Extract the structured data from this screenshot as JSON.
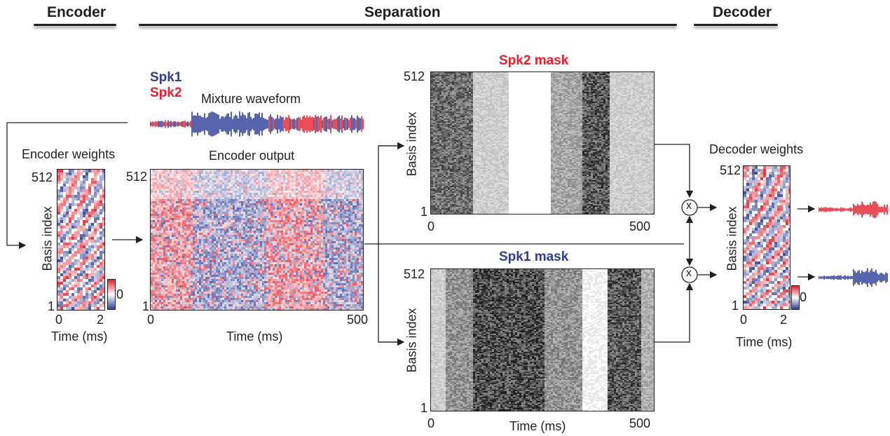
{
  "sections": {
    "encoder": "Encoder",
    "separation": "Separation",
    "decoder": "Decoder"
  },
  "legend": {
    "spk1": "Spk1",
    "spk2": "Spk2"
  },
  "mixture": {
    "title": "Mixture waveform"
  },
  "encoder_weights": {
    "title": "Encoder weights",
    "ylabel": "Basis index",
    "y_top": "512",
    "y_bottom": "1",
    "x_start": "0",
    "x_end": "2",
    "xlabel": "Time (ms)",
    "colorbar_label": "0"
  },
  "encoder_output": {
    "title": "Encoder output",
    "y_top": "512",
    "y_bottom": "1",
    "x_start": "0",
    "x_end": "500",
    "xlabel": "Time (ms)"
  },
  "spk2_mask": {
    "title": "Spk2 mask",
    "ylabel": "Basis index",
    "y_top": "512",
    "y_bottom": "1",
    "x_start": "0",
    "x_end": "500"
  },
  "spk1_mask": {
    "title": "Spk1 mask",
    "ylabel": "Basis index",
    "y_top": "512",
    "y_bottom": "1",
    "x_start": "0",
    "x_end": "500",
    "xlabel": "Time (ms)"
  },
  "decoder_weights": {
    "title": "Decoder weights",
    "ylabel": "Basis index",
    "y_top": "512",
    "y_bottom": "1",
    "x_start": "0",
    "x_end": "2",
    "xlabel": "Time (ms)",
    "colorbar_label": "0"
  },
  "multiply_symbol": "x",
  "colors": {
    "spk1": "#2e3d96",
    "spk2": "#e5202e",
    "ink": "#231f20"
  }
}
